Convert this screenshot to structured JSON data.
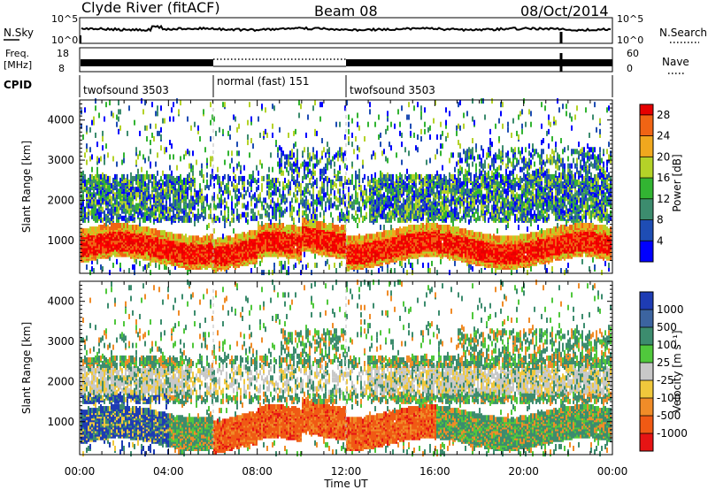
{
  "header": {
    "station": "Clyde River (fitACF)",
    "beam": "Beam 08",
    "date": "08/Oct/2014"
  },
  "top_panels": {
    "nsky_label": "N.Sky",
    "nsky_ticks": [
      "10^5",
      "10^0"
    ],
    "nsearch_label": "N.Search",
    "nsearch_ticks": [
      "10^5",
      "10^0"
    ],
    "freq_label": "Freq.",
    "freq_unit": "[MHz]",
    "freq_ticks": [
      "18",
      "8"
    ],
    "nave_label": "Nave",
    "nave_ticks": [
      "60",
      "0"
    ],
    "cpid_label": "CPID",
    "cpid_segments": [
      {
        "label": "twofsound 3503",
        "start_hour": 0,
        "end_hour": 6
      },
      {
        "label": "normal (fast) 151",
        "start_hour": 6,
        "end_hour": 12
      },
      {
        "label": "twofsound 3503",
        "start_hour": 12,
        "end_hour": 24
      }
    ]
  },
  "chart_data": [
    {
      "type": "heatmap",
      "title": "",
      "xlabel": "Time UT",
      "ylabel": "Slant Range [km]",
      "xlim": [
        0,
        24
      ],
      "ylim": [
        180,
        4500
      ],
      "x_tick_labels": [
        "00:00",
        "04:00",
        "08:00",
        "12:00",
        "16:00",
        "20:00",
        "00:00"
      ],
      "y_ticks": [
        1000,
        2000,
        3000,
        4000
      ],
      "colorbar": {
        "label": "Power [dB]",
        "ticks": [
          4,
          8,
          12,
          16,
          20,
          24,
          28
        ],
        "range": [
          0,
          30
        ]
      }
    },
    {
      "type": "heatmap",
      "title": "",
      "xlabel": "Time UT",
      "ylabel": "Slant Range [km]",
      "xlim": [
        0,
        24
      ],
      "ylim": [
        180,
        4500
      ],
      "x_tick_labels": [
        "00:00",
        "04:00",
        "08:00",
        "12:00",
        "16:00",
        "20:00",
        "00:00"
      ],
      "y_ticks": [
        1000,
        2000,
        3000,
        4000
      ],
      "colorbar": {
        "label": "Velocity [m s⁻¹]",
        "ticks": [
          "1000",
          "500",
          "100",
          "25",
          "-25",
          "-100",
          "-500",
          "-1000"
        ]
      }
    }
  ],
  "colors": {
    "power_scale": [
      "#0000ff",
      "#1e4db4",
      "#3c8c6e",
      "#32b432",
      "#b4d228",
      "#f0a81e",
      "#f06414",
      "#e60000",
      "#ff0000"
    ],
    "velocity_scale": [
      "#1e3cb4",
      "#3c64a0",
      "#3c8c6e",
      "#50c83c",
      "#c8c8c8",
      "#f0c83c",
      "#f08c28",
      "#f05a14",
      "#e61414"
    ]
  }
}
